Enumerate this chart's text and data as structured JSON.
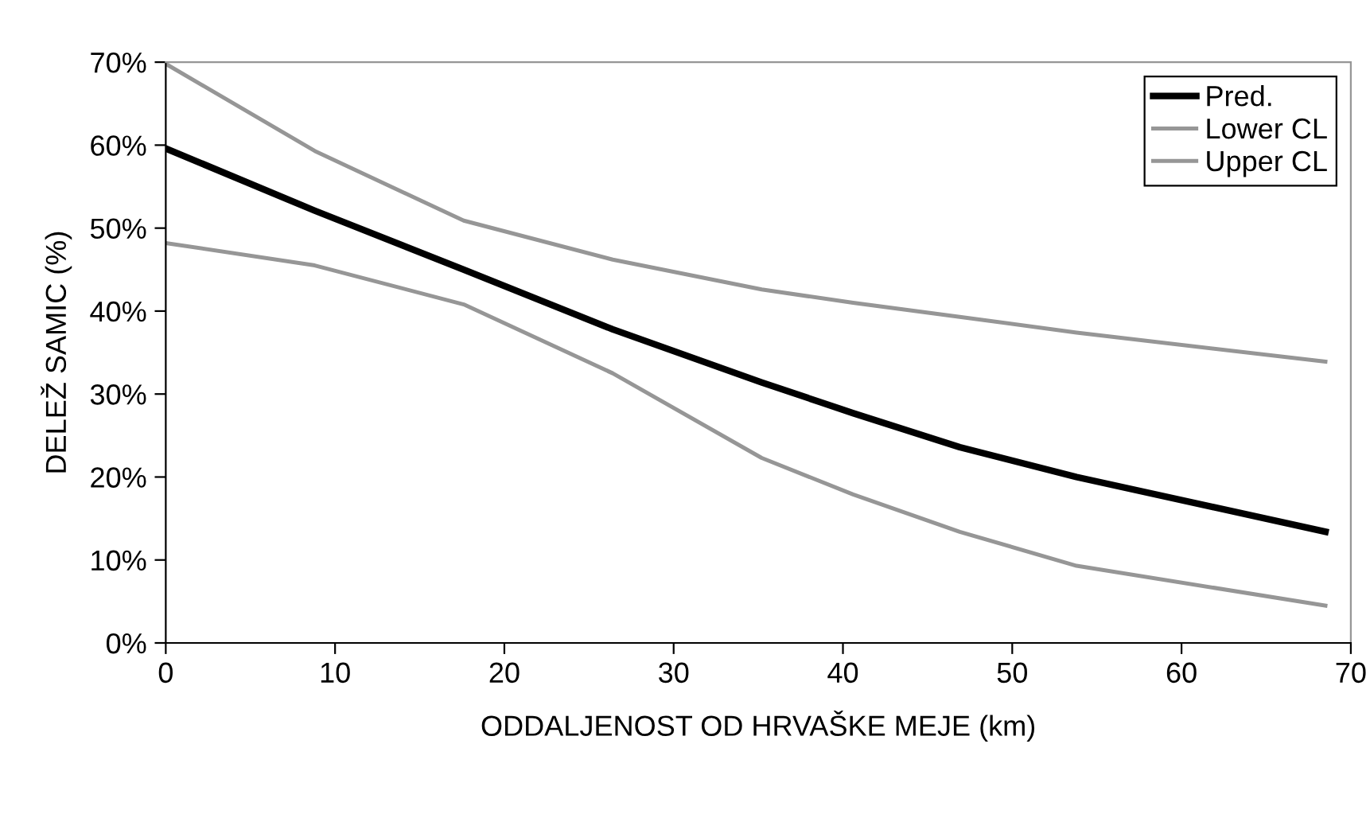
{
  "chart_data": {
    "type": "line",
    "xlabel": "ODDALJENOST OD HRVAŠKE MEJE (km)",
    "ylabel": "DELEŽ SAMIC (%)",
    "x": [
      0,
      8.8,
      17.6,
      26.4,
      35.2,
      40.6,
      46.9,
      53.8,
      68.5
    ],
    "series": [
      {
        "name": "Pred.",
        "color": "#000000",
        "values": [
          59.6,
          52.1,
          45.0,
          37.8,
          31.4,
          27.7,
          23.6,
          20.0,
          13.4
        ]
      },
      {
        "name": "Lower CL",
        "color": "#969696",
        "values": [
          48.2,
          45.5,
          40.8,
          32.5,
          22.3,
          17.9,
          13.4,
          9.3,
          4.5
        ]
      },
      {
        "name": "Upper CL",
        "color": "#969696",
        "values": [
          69.8,
          59.3,
          50.9,
          46.2,
          42.6,
          41.0,
          39.3,
          37.4,
          33.9
        ]
      }
    ],
    "xlim": [
      0,
      70
    ],
    "xticks": [
      0,
      10,
      20,
      30,
      40,
      50,
      60,
      70
    ],
    "ylim": [
      0,
      70
    ],
    "yticks": [
      {
        "value": 0,
        "label": "0%"
      },
      {
        "value": 10,
        "label": "10%"
      },
      {
        "value": 20,
        "label": "20%"
      },
      {
        "value": 30,
        "label": "30%"
      },
      {
        "value": 40,
        "label": "40%"
      },
      {
        "value": 50,
        "label": "50%"
      },
      {
        "value": 60,
        "label": "60%"
      },
      {
        "value": 70,
        "label": "70%"
      }
    ],
    "grid": false,
    "legend": "top right",
    "line_style": "solid",
    "marker": "none"
  }
}
